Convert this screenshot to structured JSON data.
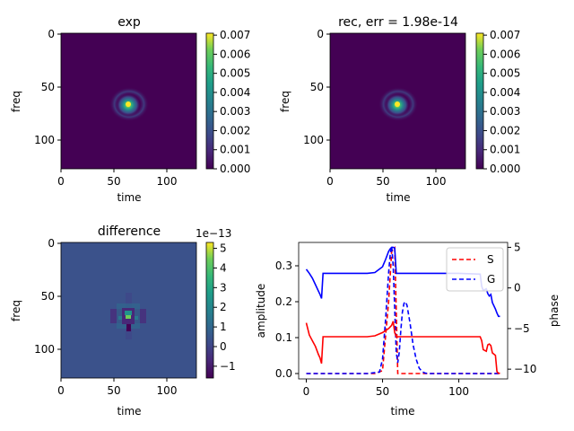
{
  "colors": {
    "viridis_low": "#440154",
    "viridis_high": "#fde725",
    "diff_background": "#3b528b",
    "series_S": "#ff0000",
    "series_G": "#0000ff"
  },
  "chart_data": [
    {
      "type": "heatmap",
      "id": "exp",
      "title": "exp",
      "xlabel": "time",
      "ylabel": "freq",
      "x_ticks": [
        "0",
        "50",
        "100"
      ],
      "y_ticks": [
        "0",
        "50",
        "100"
      ],
      "xlim": [
        0,
        128
      ],
      "ylim": [
        0,
        128
      ],
      "colorbar": {
        "ticks": [
          "0.000",
          "0.001",
          "0.002",
          "0.003",
          "0.004",
          "0.005",
          "0.006",
          "0.007"
        ],
        "range": [
          0,
          0.0071
        ],
        "colormap": "viridis"
      },
      "peak": {
        "time": 64,
        "freq": 67,
        "value": 0.0071
      }
    },
    {
      "type": "heatmap",
      "id": "rec",
      "title": "rec, err = 1.98e-14",
      "xlabel": "time",
      "ylabel": "freq",
      "x_ticks": [
        "0",
        "50",
        "100"
      ],
      "y_ticks": [
        "0",
        "50",
        "100"
      ],
      "xlim": [
        0,
        128
      ],
      "ylim": [
        0,
        128
      ],
      "colorbar": {
        "ticks": [
          "0.000",
          "0.001",
          "0.002",
          "0.003",
          "0.004",
          "0.005",
          "0.006",
          "0.007"
        ],
        "range": [
          0,
          0.0071
        ],
        "colormap": "viridis"
      },
      "peak": {
        "time": 64,
        "freq": 67,
        "value": 0.0071
      }
    },
    {
      "type": "heatmap",
      "id": "difference",
      "title": "difference",
      "xlabel": "time",
      "ylabel": "freq",
      "x_ticks": [
        "0",
        "50",
        "100"
      ],
      "y_ticks": [
        "0",
        "50",
        "100"
      ],
      "xlim": [
        0,
        128
      ],
      "ylim": [
        0,
        128
      ],
      "colorbar": {
        "ticks": [
          "−1",
          "0",
          "1",
          "2",
          "3",
          "4",
          "5"
        ],
        "range": [
          -1.6,
          5.3
        ],
        "scale_label": "1e−13",
        "colormap": "viridis"
      },
      "peak": {
        "time": 64,
        "freq": 67,
        "value": 5.3
      }
    },
    {
      "type": "line",
      "id": "amplitude-phase",
      "xlabel": "time",
      "ylabel": "amplitude",
      "ylabel_right": "phase",
      "xlim": [
        -5,
        132
      ],
      "ylim": [
        -0.015,
        0.365
      ],
      "ylim_right": [
        -11.2,
        5.6
      ],
      "x_ticks": [
        "0",
        "50",
        "100"
      ],
      "y_ticks": [
        "0.0",
        "0.1",
        "0.2",
        "0.3"
      ],
      "y_ticks_right": [
        "−10",
        "−5",
        "0",
        "5"
      ],
      "legend": {
        "position": "top-right",
        "entries": [
          "S",
          "G"
        ]
      },
      "series": [
        {
          "name": "S",
          "axis": "left",
          "style": "dashed",
          "x": [
            0,
            5,
            10,
            12,
            30,
            45,
            50,
            54,
            56,
            58,
            60,
            80,
            100,
            115,
            117,
            119,
            121,
            123,
            125,
            127
          ],
          "y": [
            0.0,
            0.0,
            0.0,
            0.0,
            0.0,
            0.0,
            0.008,
            0.2,
            0.34,
            0.35,
            0.0,
            0.0,
            0.0,
            0.0,
            0.0,
            0.0,
            0.0,
            0.0,
            0.0,
            0.0
          ]
        },
        {
          "name": "G",
          "axis": "left",
          "style": "dashed",
          "x": [
            0,
            40,
            48,
            50,
            52,
            54,
            55,
            56,
            57,
            58,
            59,
            60,
            61,
            62,
            63,
            64,
            65,
            66,
            68,
            70,
            72,
            74,
            76,
            78,
            80,
            90,
            128
          ],
          "y": [
            0.0,
            0.0,
            0.004,
            0.04,
            0.15,
            0.28,
            0.33,
            0.355,
            0.3,
            0.18,
            0.06,
            0.03,
            0.06,
            0.12,
            0.17,
            0.195,
            0.2,
            0.19,
            0.14,
            0.08,
            0.04,
            0.015,
            0.005,
            0.001,
            0.0,
            0.0,
            0.0
          ]
        },
        {
          "name": "",
          "axis": "right",
          "style": "solid",
          "color": "#ff0000",
          "x": [
            0,
            2,
            4,
            6,
            8,
            9,
            10,
            11,
            12,
            20,
            30,
            40,
            45,
            50,
            54,
            56,
            57,
            58,
            59,
            60,
            70,
            80,
            100,
            114,
            115,
            116,
            118,
            119,
            120,
            121,
            122,
            124,
            125,
            126,
            127
          ],
          "y": [
            -4.3,
            -5.8,
            -6.5,
            -7.2,
            -8.2,
            -8.6,
            -9.3,
            -6.0,
            -6.0,
            -6.0,
            -6.0,
            -6.0,
            -5.9,
            -5.5,
            -5.0,
            -4.6,
            -4.1,
            -5.5,
            -6.0,
            -6.0,
            -6.0,
            -6.0,
            -6.0,
            -6.0,
            -6.5,
            -7.6,
            -7.8,
            -7.0,
            -6.9,
            -7.1,
            -8.0,
            -8.3,
            -10.3,
            -10.5,
            -10.5
          ]
        },
        {
          "name": "",
          "axis": "right",
          "style": "solid",
          "color": "#0000ff",
          "x": [
            0,
            2,
            4,
            6,
            8,
            9,
            10,
            11,
            12,
            20,
            30,
            40,
            45,
            50,
            52,
            54,
            55,
            56,
            57,
            58,
            59,
            60,
            70,
            80,
            100,
            114,
            115,
            116,
            118,
            119,
            120,
            121,
            122,
            124,
            125,
            126,
            127
          ],
          "y": [
            2.3,
            1.8,
            1.2,
            0.4,
            -0.4,
            -0.8,
            -1.3,
            1.8,
            1.8,
            1.8,
            1.8,
            1.8,
            1.9,
            2.6,
            3.5,
            4.5,
            4.8,
            5.0,
            5.0,
            4.9,
            1.8,
            1.8,
            1.8,
            1.8,
            1.8,
            1.7,
            0.2,
            -0.3,
            -0.1,
            -0.7,
            -1.0,
            -0.8,
            -1.8,
            -2.6,
            -3.1,
            -3.5,
            -3.5
          ]
        }
      ]
    }
  ]
}
